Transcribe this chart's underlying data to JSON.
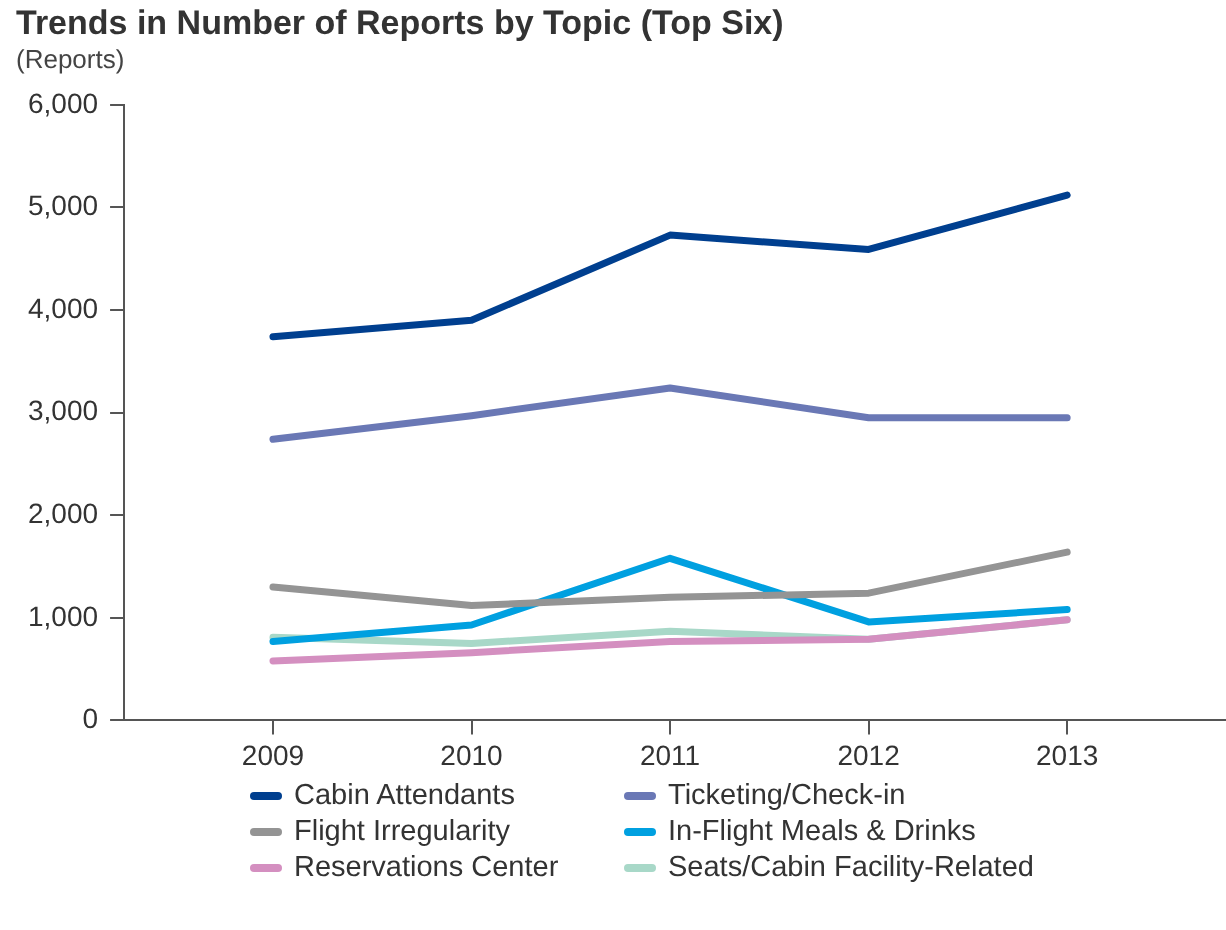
{
  "chart_data": {
    "type": "line",
    "title": "Trends in Number of Reports by Topic (Top Six)",
    "ylabel": "(Reports)",
    "x": [
      2009,
      2010,
      2011,
      2012,
      2013
    ],
    "xlim": [
      2008.25,
      2013.8
    ],
    "xticks": [
      2009,
      2010,
      2011,
      2012,
      2013
    ],
    "ylim": [
      0,
      6000
    ],
    "yticks": [
      0,
      {
        "value": 1000,
        "label": "1,000"
      },
      {
        "value": 2000,
        "label": "2,000"
      },
      {
        "value": 3000,
        "label": "3,000"
      },
      {
        "value": 4000,
        "label": "4,000"
      },
      {
        "value": 5000,
        "label": "5,000"
      },
      {
        "value": 6000,
        "label": "6,000"
      }
    ],
    "grid": false,
    "legend": "bottom",
    "marker": "none",
    "line_style": "solid",
    "series": [
      {
        "name": "Cabin Attendants",
        "color": "#003f8f",
        "values": [
          3740,
          3900,
          4730,
          4590,
          5120
        ]
      },
      {
        "name": "Ticketing/Check-in",
        "color": "#6a78b5",
        "values": [
          2740,
          2970,
          3240,
          2950,
          2950
        ]
      },
      {
        "name": "Flight Irregularity",
        "color": "#949494",
        "values": [
          1300,
          1120,
          1200,
          1240,
          1640
        ]
      },
      {
        "name": "In-Flight Meals & Drinks",
        "color": "#00a0e0",
        "values": [
          770,
          930,
          1580,
          960,
          1080
        ]
      },
      {
        "name": "Reservations Center",
        "color": "#d48fc0",
        "values": [
          580,
          660,
          770,
          790,
          980
        ]
      },
      {
        "name": "Seats/Cabin Facility-Related",
        "color": "#a8d8c8",
        "values": [
          810,
          750,
          870,
          790,
          980
        ]
      }
    ]
  }
}
